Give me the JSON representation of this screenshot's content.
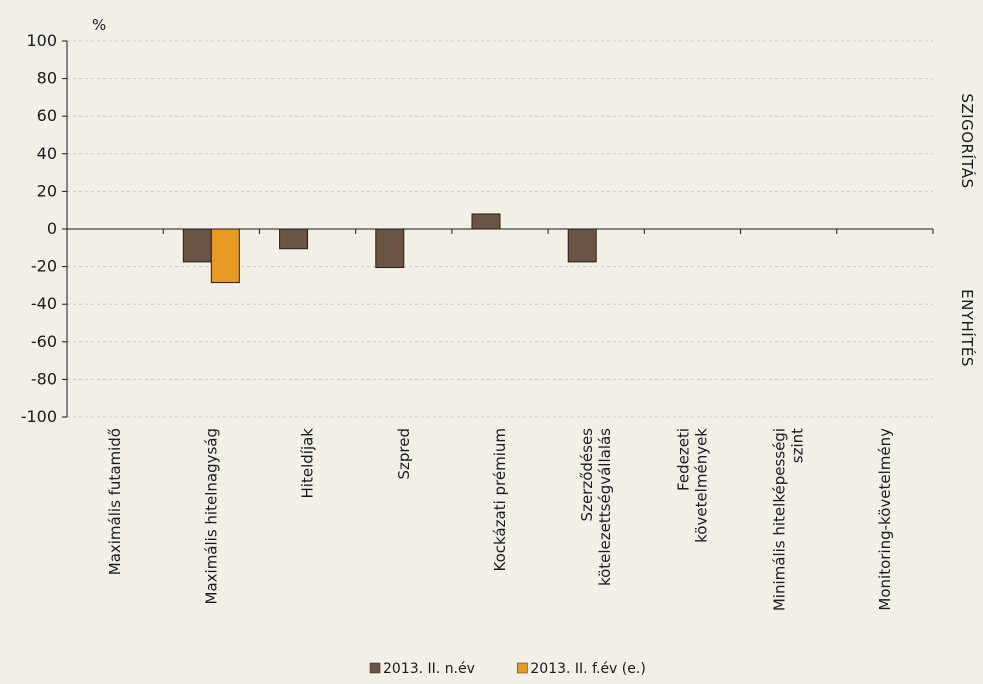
{
  "chart_data": {
    "type": "bar",
    "unit": "%",
    "categories": [
      [
        "Maximális futamidő"
      ],
      [
        "Maximális hitelnagyság"
      ],
      [
        "Hiteldíjak"
      ],
      [
        "Szpred"
      ],
      [
        "Kockázati prémium"
      ],
      [
        "Szerződéses",
        "kötelezettségvállalás"
      ],
      [
        "Fedezeti",
        "követelmények"
      ],
      [
        "Minimális hitelképességi",
        "szint"
      ],
      [
        "Monitoring-követelmény"
      ]
    ],
    "series": [
      {
        "name": "2013. II. n.év",
        "color": "#6b5443",
        "values": [
          0,
          -17.5,
          -10.5,
          -20.5,
          8,
          -17.5,
          0,
          0,
          0
        ]
      },
      {
        "name": "2013. II. f.év (e.)",
        "color": "#e69a23",
        "values": [
          0,
          -28.5,
          0,
          0,
          0,
          0,
          0,
          0,
          0
        ]
      }
    ],
    "ylim": [
      -100,
      100
    ],
    "yticks": [
      100,
      80,
      60,
      40,
      20,
      0,
      -20,
      -40,
      -60,
      -80,
      -100
    ],
    "right_labels": {
      "upper": "SZIGORÍTÁS",
      "lower": "ENYHÍTÉS"
    },
    "grid": true,
    "legend_position": "bottom-center"
  }
}
